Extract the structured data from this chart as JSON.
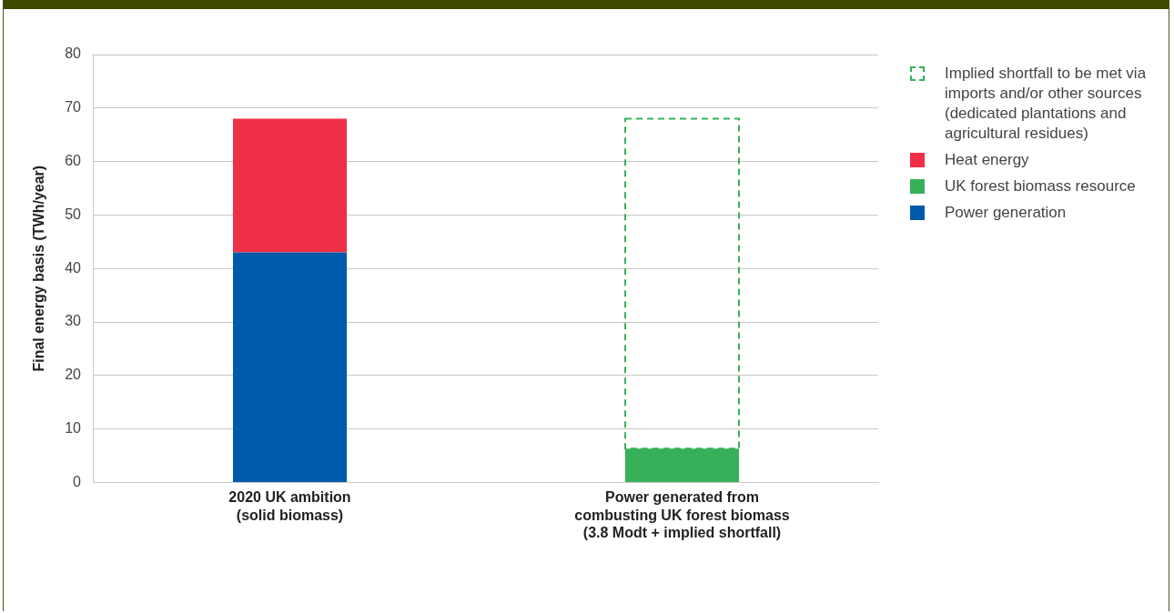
{
  "chart_data": {
    "type": "bar",
    "stacked": true,
    "ylabel": "Final energy basis (TWh/year)",
    "categories": [
      "2020 UK ambition\n(solid biomass)",
      "Power generated from\ncombusting UK forest biomass\n(3.8 Modt + implied shortfall)"
    ],
    "series": [
      {
        "name": "Power generation",
        "color": "#005aab",
        "values": [
          43,
          null
        ]
      },
      {
        "name": "UK forest biomass resource",
        "color": "#36b15a",
        "values": [
          null,
          6.3
        ]
      },
      {
        "name": "Heat energy",
        "color": "#ef2f45",
        "values": [
          25,
          null
        ]
      },
      {
        "name": "Implied shortfall to be met via imports and/or other sources (dedicated plantations and agricultural residues)",
        "color": "#36b15a",
        "line_style": "dashed",
        "values": [
          null,
          61.7
        ]
      }
    ],
    "ylim": [
      0,
      80
    ],
    "yticks": [
      0,
      10,
      20,
      30,
      40,
      50,
      60,
      70,
      80
    ],
    "grid": "y",
    "legend": "right"
  }
}
